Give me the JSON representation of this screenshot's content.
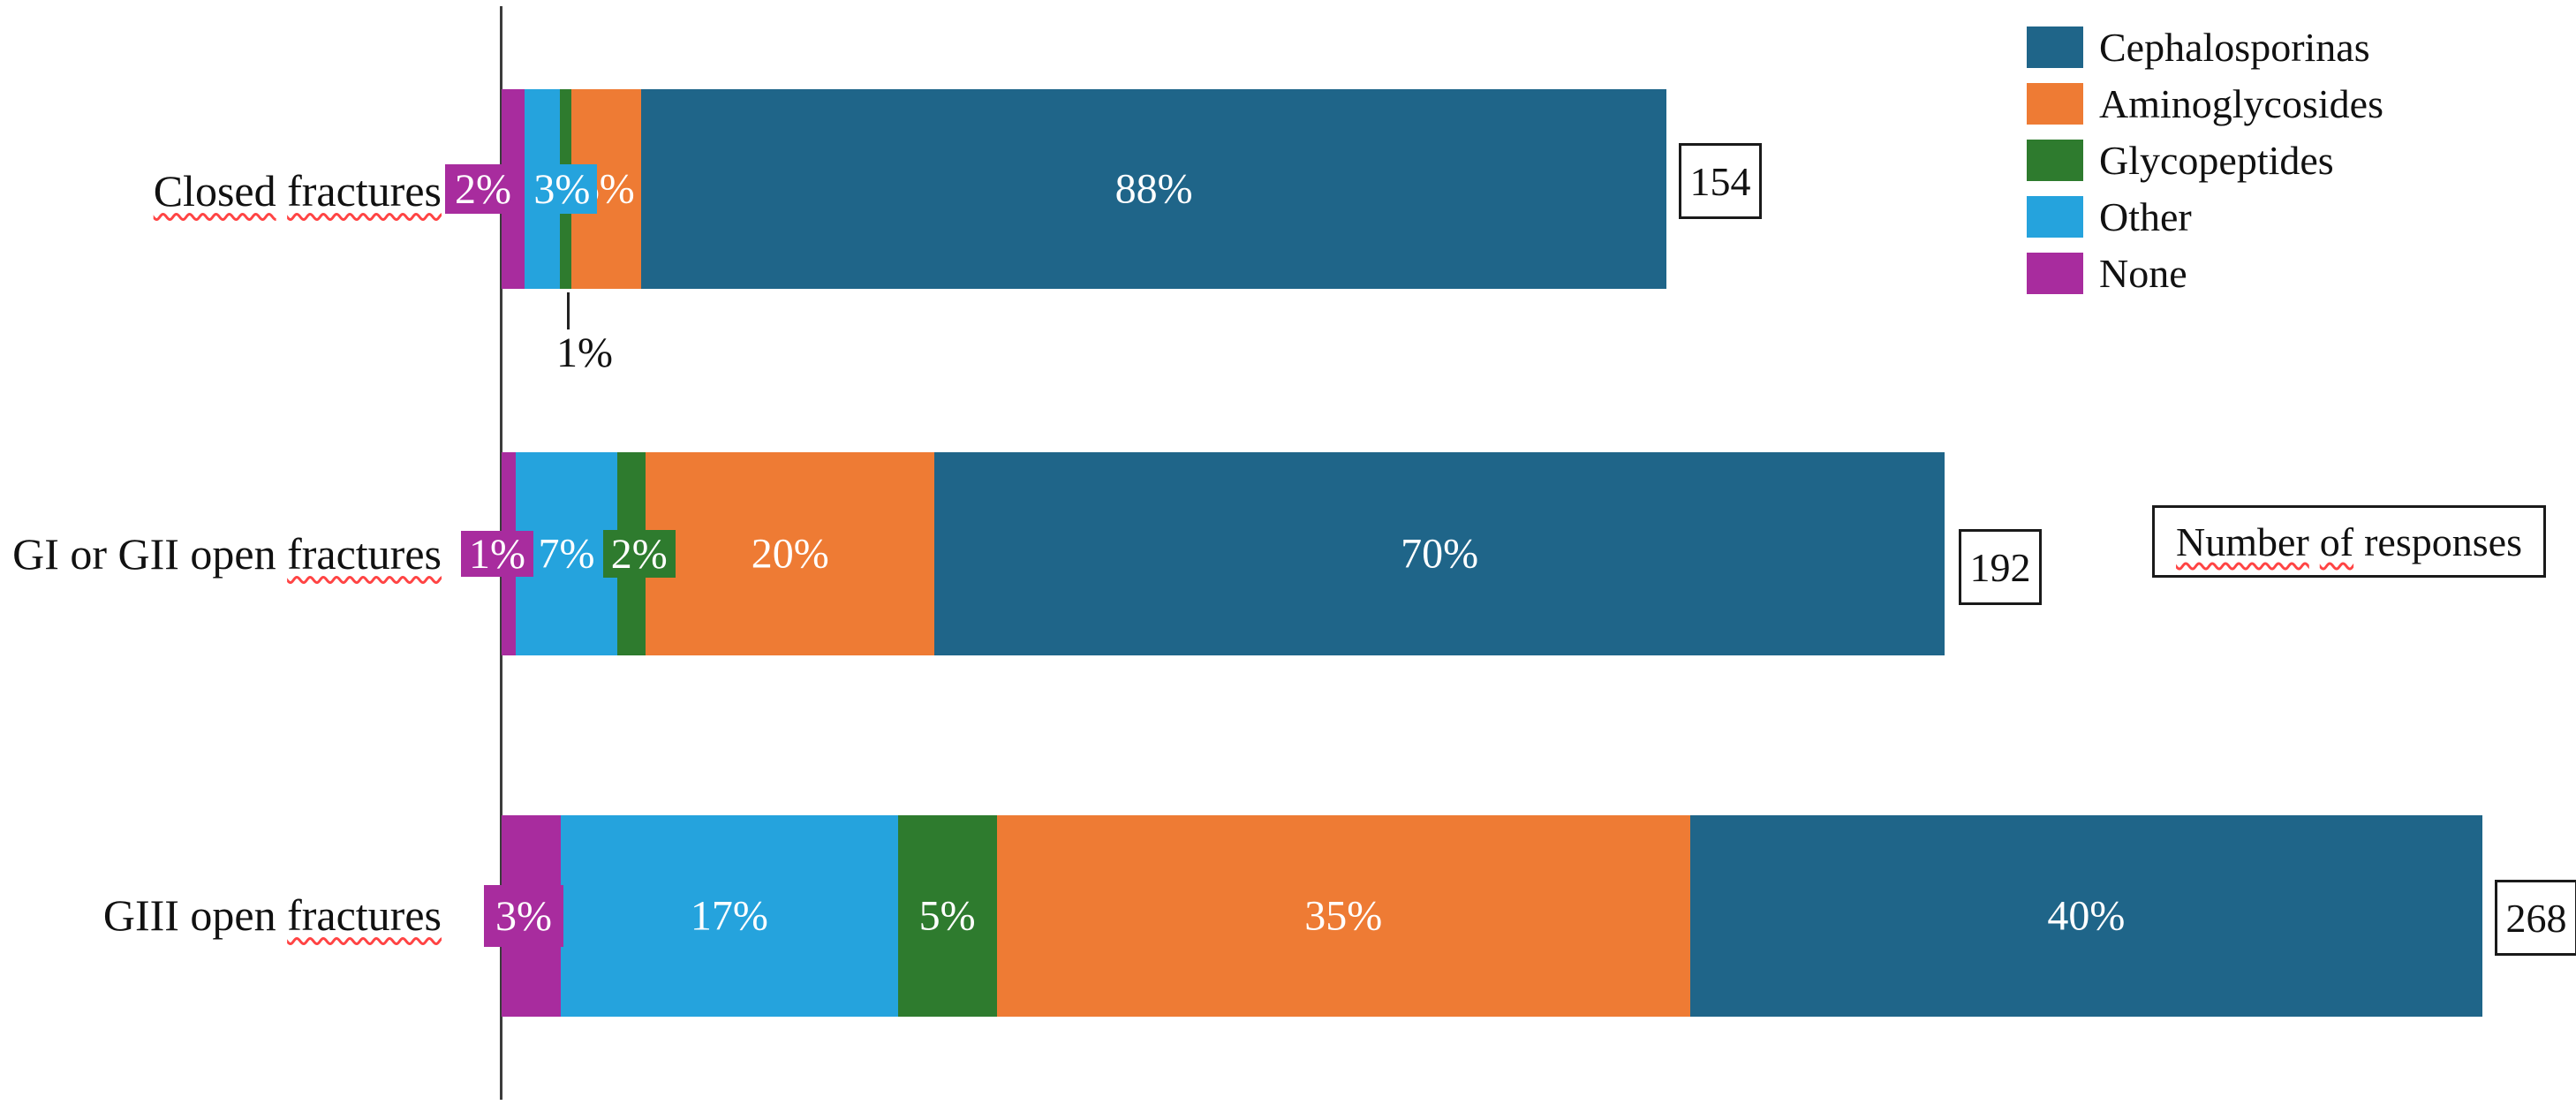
{
  "chart_data": {
    "type": "bar",
    "orientation": "horizontal",
    "stacked": true,
    "value_format": "percent",
    "categories": [
      "Closed fractures",
      "GI or GII open fractures",
      "GIII open fractures"
    ],
    "category_parts": [
      [
        {
          "text": "Closed",
          "squiggle": true
        },
        {
          "text": "fractures",
          "squiggle": true
        }
      ],
      [
        {
          "text": "GI or GII open",
          "squiggle": false
        },
        {
          "text": "fractures",
          "squiggle": true
        }
      ],
      [
        {
          "text": "GIII open",
          "squiggle": false
        },
        {
          "text": "fractures",
          "squiggle": true
        }
      ]
    ],
    "series": [
      {
        "name": "None",
        "color": "#a82c9e",
        "values": [
          2,
          1,
          3
        ]
      },
      {
        "name": "Other",
        "color": "#25a3dd",
        "values": [
          3,
          7,
          17
        ]
      },
      {
        "name": "Glycopeptides",
        "color": "#2e7b2e",
        "values": [
          1,
          2,
          5
        ]
      },
      {
        "name": "Aminoglycosides",
        "color": "#ee7b34",
        "values": [
          6,
          20,
          35
        ]
      },
      {
        "name": "Cephalosporinas",
        "color": "#1f6589",
        "values": [
          88,
          70,
          40
        ]
      }
    ],
    "bar_lengths_proportional_to_totals": true,
    "totals": [
      154,
      192,
      268
    ],
    "totals_box_label": "Number of responses",
    "totals_box_label_parts": [
      {
        "text": "Number",
        "squiggle": true
      },
      {
        "text": "of",
        "squiggle": true
      },
      {
        "text": "responses",
        "squiggle": false
      }
    ],
    "legend": [
      "Cephalosporinas",
      "Aminoglycosides",
      "Glycopeptides",
      "Other",
      "None"
    ],
    "legend_position": "top-right",
    "annotations": [
      {
        "text": "1%",
        "category": "Closed fractures",
        "series": "Glycopeptides",
        "placement": "below-bar-callout"
      }
    ]
  },
  "colors": {
    "background": "#ffffff",
    "axis": "#3c3c3c",
    "label_text": "#111111",
    "bar_label_text": "#ffffff",
    "squiggle": "#ff4444",
    "box_border": "#1a1a1a"
  }
}
